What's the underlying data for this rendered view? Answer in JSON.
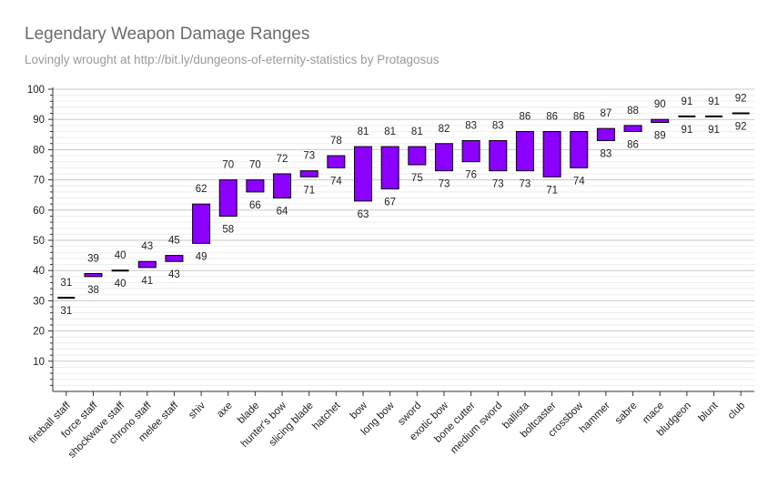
{
  "chart_data": {
    "type": "bar",
    "subtype": "floating-range",
    "title": "Legendary Weapon Damage Ranges",
    "subtitle": "Lovingly wrought at http://bit.ly/dungeons-of-eternity-statistics by Protagosus",
    "xlabel": "",
    "ylabel": "",
    "ylim": [
      0,
      100
    ],
    "yticks": [
      "10",
      "20",
      "30",
      "40",
      "50",
      "60",
      "70",
      "80",
      "90",
      "100"
    ],
    "grid": true,
    "bar_color": "#8b00ff",
    "categories": [
      "fireball staff",
      "force staff",
      "shockwave staff",
      "chrono staff",
      "melee staff",
      "shiv",
      "axe",
      "blade",
      "hunter's bow",
      "slicing blade",
      "hatchet",
      "bow",
      "long bow",
      "sword",
      "exotic bow",
      "bone cutter",
      "medium sword",
      "ballista",
      "boltcaster",
      "crossbow",
      "hammer",
      "sabre",
      "mace",
      "bludgeon",
      "blunt",
      "club"
    ],
    "min": [
      31,
      38,
      40,
      41,
      43,
      49,
      58,
      66,
      64,
      71,
      74,
      63,
      67,
      75,
      73,
      76,
      73,
      73,
      71,
      74,
      83,
      86,
      89,
      91,
      91,
      92
    ],
    "max": [
      31,
      39,
      40,
      43,
      45,
      62,
      70,
      70,
      72,
      73,
      78,
      81,
      81,
      81,
      82,
      83,
      83,
      86,
      86,
      86,
      87,
      88,
      90,
      91,
      91,
      92
    ],
    "min_labels": [
      "31",
      "38",
      "40",
      "41",
      "43",
      "49",
      "58",
      "66",
      "64",
      "71",
      "74",
      "63",
      "67",
      "75",
      "73",
      "76",
      "73",
      "73",
      "71",
      "74",
      "83",
      "86",
      "89",
      "91",
      "91",
      "92"
    ],
    "max_labels": [
      "31",
      "39",
      "40",
      "43",
      "45",
      "62",
      "70",
      "70",
      "72",
      "73",
      "78",
      "81",
      "81",
      "81",
      "82",
      "83",
      "83",
      "86",
      "86",
      "86",
      "87",
      "88",
      "90",
      "91",
      "91",
      "92"
    ]
  }
}
